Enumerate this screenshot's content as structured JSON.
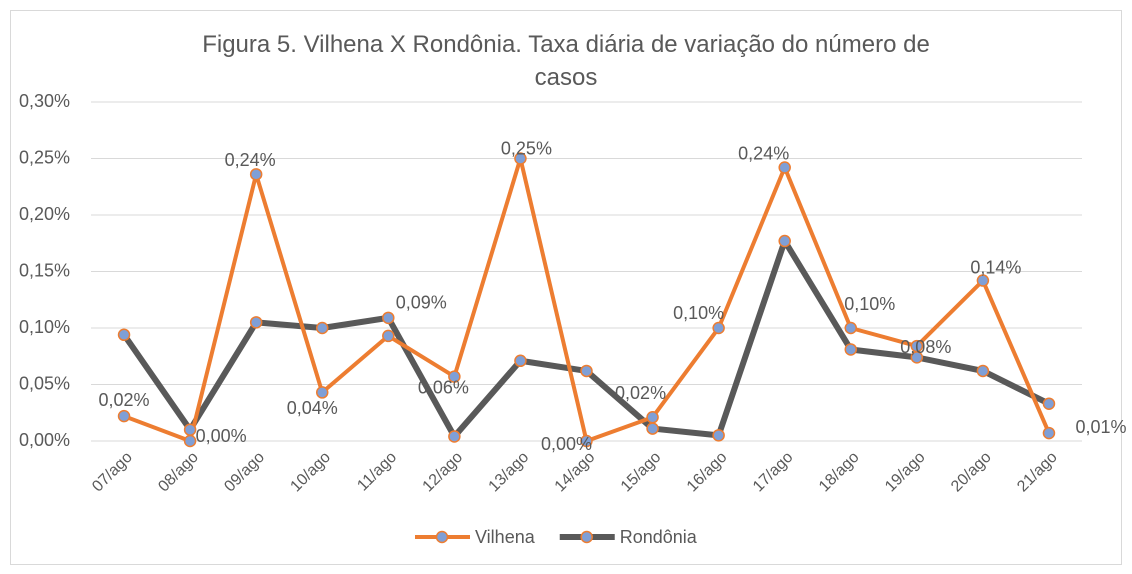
{
  "chart_data": {
    "type": "line",
    "title": "Figura 5. Vilhena X Rondônia. Taxa diária de variação do número de casos",
    "categories": [
      "07/ago",
      "08/ago",
      "09/ago",
      "10/ago",
      "11/ago",
      "12/ago",
      "13/ago",
      "14/ago",
      "15/ago",
      "16/ago",
      "17/ago",
      "18/ago",
      "19/ago",
      "20/ago",
      "21/ago"
    ],
    "series": [
      {
        "name": "Vilhena",
        "color": "#ed7d31",
        "marker_color": "#7f9fd6",
        "values": [
          0.022,
          0.0,
          0.236,
          0.043,
          0.093,
          0.057,
          0.25,
          0.0,
          0.021,
          0.1,
          0.242,
          0.1,
          0.084,
          0.142,
          0.007
        ],
        "value_labels": [
          "0,02%",
          "0,00%",
          "0,24%",
          "0,04%",
          "0,09%",
          "0,06%",
          "0,25%",
          "0,00%",
          "0,02%",
          "0,10%",
          "0,24%",
          "0,10%",
          "0,08%",
          "0,14%",
          "0,01%"
        ]
      },
      {
        "name": "Rondônia",
        "color": "#595959",
        "marker_color": "#7f9fd6",
        "values": [
          0.094,
          0.01,
          0.105,
          0.1,
          0.109,
          0.004,
          0.071,
          0.062,
          0.011,
          0.005,
          0.177,
          0.081,
          0.074,
          0.062,
          0.033
        ]
      }
    ],
    "ylim": [
      0,
      0.3
    ],
    "yticks": [
      {
        "value": 0,
        "label": "0,00%"
      },
      {
        "value": 0.05,
        "label": "0,05%"
      },
      {
        "value": 0.1,
        "label": "0,10%"
      },
      {
        "value": 0.15,
        "label": "0,15%"
      },
      {
        "value": 0.2,
        "label": "0,20%"
      },
      {
        "value": 0.25,
        "label": "0,25%"
      },
      {
        "value": 0.3,
        "label": "0,30%"
      }
    ],
    "grid": true,
    "legend": "bottom"
  }
}
